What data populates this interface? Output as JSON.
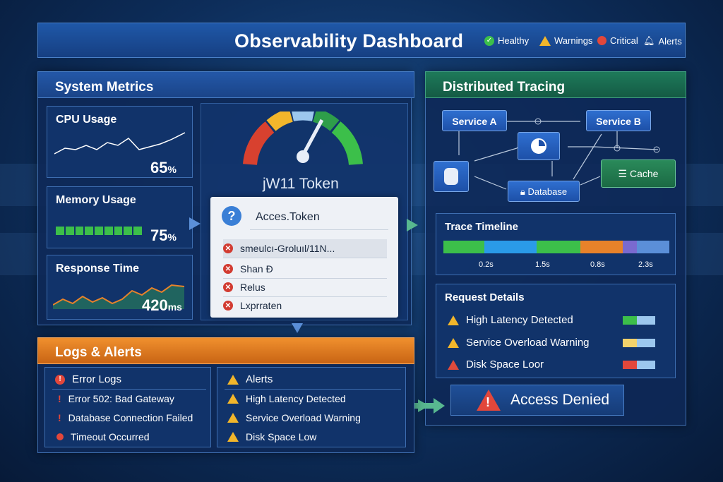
{
  "header": {
    "title": "Observability Dashboard",
    "legend": [
      {
        "label": "Healthy",
        "icon": "check-icon",
        "color": "#3cbf4a"
      },
      {
        "label": "Warnings",
        "icon": "warning-icon",
        "color": "#f2b62b"
      },
      {
        "label": "Critical",
        "icon": "critical-dot-icon",
        "color": "#e2473b"
      },
      {
        "label": "Alerts",
        "icon": "bell-icon",
        "color": "#ffffff"
      }
    ]
  },
  "system_metrics": {
    "title": "System Metrics",
    "cpu": {
      "label": "CPU Usage",
      "value": "65",
      "unit": "%"
    },
    "memory": {
      "label": "Memory Usage",
      "value": "75",
      "unit": "%"
    },
    "response": {
      "label": "Response Time",
      "value": "420",
      "unit": "ms"
    }
  },
  "token": {
    "heading": "jW11 Token",
    "panel_title": "Acces.Token",
    "rows": [
      "smeulcı-Groluıl/11N...",
      "Shan Ð",
      "Relus",
      "Lxprraten"
    ]
  },
  "tracing": {
    "title": "Distributed Tracing",
    "services": {
      "a": "Service A",
      "b": "Service B",
      "database": "Database",
      "cache": "Cache"
    },
    "timeline": {
      "title": "Trace Timeline",
      "ticks": [
        "0.2s",
        "1.5s",
        "0.8s",
        "2.3s"
      ]
    },
    "request_details": {
      "title": "Request Details",
      "items": [
        "High Latency Detected",
        "Service Overload Warning",
        "Disk Space Loor"
      ]
    },
    "access_denied": "Access Denied"
  },
  "logs": {
    "title": "Logs & Alerts",
    "error_logs": {
      "title": "Error Logs",
      "items": [
        "Error 502: Bad Gateway",
        "Database Connection Failed",
        "Timeout Occurred"
      ]
    },
    "alerts": {
      "title": "Alerts",
      "items": [
        "High Latency Detected",
        "Service Overload Warning",
        "Disk Space Low"
      ]
    }
  },
  "colors": {
    "green": "#3cbf4a",
    "yellow": "#f2b62b",
    "red": "#e2473b",
    "orange": "#e8822a",
    "accent": "#1f58a8"
  }
}
